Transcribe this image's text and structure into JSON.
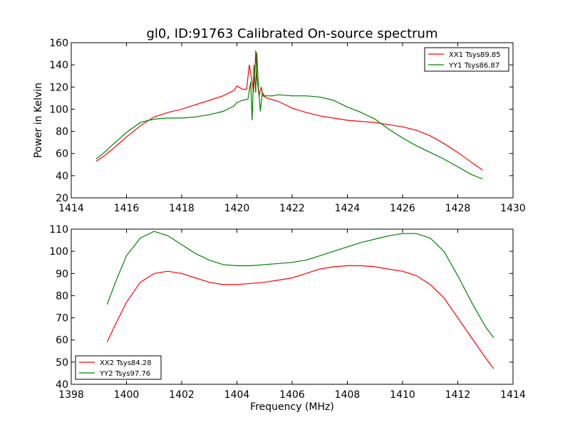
{
  "chart_data": [
    {
      "type": "line",
      "title": "gl0, ID:91763 Calibrated On-source spectrum",
      "xlabel": "",
      "ylabel": "Power in Kelvin",
      "xlim": [
        1414,
        1430
      ],
      "ylim": [
        20,
        160
      ],
      "xticks": [
        1414,
        1416,
        1418,
        1420,
        1422,
        1424,
        1426,
        1428,
        1430
      ],
      "yticks": [
        20,
        40,
        60,
        80,
        100,
        120,
        140,
        160
      ],
      "grid": false,
      "legend": "top-right",
      "series": [
        {
          "name": "XX1 Tsys89.85",
          "color": "#ff0000",
          "x": [
            1414.9,
            1415.2,
            1415.5,
            1416.0,
            1416.5,
            1417.0,
            1417.5,
            1418.0,
            1418.5,
            1419.0,
            1419.5,
            1419.9,
            1420.0,
            1420.2,
            1420.35,
            1420.45,
            1420.55,
            1420.6,
            1420.65,
            1420.68,
            1420.72,
            1420.8,
            1420.88,
            1420.95,
            1421.1,
            1421.5,
            1422.0,
            1422.5,
            1423.0,
            1423.5,
            1424.0,
            1424.5,
            1425.0,
            1425.5,
            1426.0,
            1426.5,
            1427.0,
            1427.5,
            1428.0,
            1428.5,
            1428.9
          ],
          "y": [
            53,
            58,
            64,
            75,
            85,
            93,
            97,
            100,
            104,
            108,
            112,
            117,
            121,
            118,
            118,
            140,
            125,
            115,
            135,
            153,
            130,
            112,
            120,
            112,
            110,
            107,
            101,
            97,
            94,
            92,
            90,
            89,
            88,
            86,
            84,
            81,
            76,
            69,
            61,
            52,
            45
          ]
        },
        {
          "name": "YY1 Tsys86.87",
          "color": "#008000",
          "x": [
            1414.9,
            1415.2,
            1415.5,
            1416.0,
            1416.5,
            1417.0,
            1417.5,
            1418.0,
            1418.5,
            1419.0,
            1419.5,
            1419.9,
            1420.0,
            1420.2,
            1420.4,
            1420.5,
            1420.55,
            1420.62,
            1420.68,
            1420.72,
            1420.78,
            1420.85,
            1420.92,
            1421.0,
            1421.3,
            1421.5,
            1422.0,
            1422.5,
            1423.0,
            1423.5,
            1424.0,
            1424.5,
            1425.0,
            1425.5,
            1426.0,
            1426.5,
            1427.0,
            1427.5,
            1428.0,
            1428.5,
            1428.9
          ],
          "y": [
            55,
            61,
            68,
            79,
            88,
            91,
            92,
            92,
            93,
            95,
            98,
            103,
            106,
            108,
            109,
            125,
            90,
            140,
            115,
            151,
            120,
            98,
            115,
            112,
            112,
            113,
            112,
            112,
            111,
            108,
            102,
            97,
            91,
            82,
            74,
            67,
            61,
            55,
            48,
            41,
            37
          ]
        }
      ]
    },
    {
      "type": "line",
      "title": "",
      "xlabel": "Frequency (MHz)",
      "ylabel": "",
      "xlim": [
        1398,
        1414
      ],
      "ylim": [
        40,
        110
      ],
      "xticks": [
        1398,
        1400,
        1402,
        1404,
        1406,
        1408,
        1410,
        1412,
        1414
      ],
      "yticks": [
        40,
        50,
        60,
        70,
        80,
        90,
        100,
        110
      ],
      "grid": false,
      "legend": "bottom-left",
      "series": [
        {
          "name": "XX2 Tsys84.28",
          "color": "#ff0000",
          "x": [
            1399.3,
            1399.6,
            1400.0,
            1400.5,
            1401.0,
            1401.5,
            1402.0,
            1402.5,
            1403.0,
            1403.5,
            1404.0,
            1404.5,
            1405.0,
            1405.5,
            1406.0,
            1406.5,
            1407.0,
            1407.5,
            1408.0,
            1408.5,
            1409.0,
            1409.5,
            1410.0,
            1410.5,
            1411.0,
            1411.5,
            1412.0,
            1412.5,
            1413.0,
            1413.3
          ],
          "y": [
            59,
            67,
            77,
            86,
            90,
            91,
            90,
            88,
            86,
            85,
            85,
            85.5,
            86,
            87,
            88,
            90,
            92,
            93,
            93.5,
            93.5,
            93,
            92,
            91,
            89,
            85,
            79,
            70,
            61,
            52,
            47
          ]
        },
        {
          "name": "YY2 Tsys97.76",
          "color": "#008000",
          "x": [
            1399.3,
            1399.6,
            1400.0,
            1400.5,
            1401.0,
            1401.5,
            1402.0,
            1402.5,
            1403.0,
            1403.5,
            1404.0,
            1404.5,
            1405.0,
            1405.5,
            1406.0,
            1406.5,
            1407.0,
            1407.5,
            1408.0,
            1408.5,
            1409.0,
            1409.5,
            1410.0,
            1410.5,
            1411.0,
            1411.5,
            1412.0,
            1412.5,
            1413.0,
            1413.3
          ],
          "y": [
            76,
            86,
            98,
            106,
            109,
            107,
            103,
            99,
            96,
            94,
            93.5,
            93.5,
            94,
            94.5,
            95,
            96,
            98,
            100,
            102,
            104,
            105.5,
            107,
            108,
            108,
            106,
            100,
            89,
            77,
            66,
            61
          ]
        }
      ]
    }
  ]
}
